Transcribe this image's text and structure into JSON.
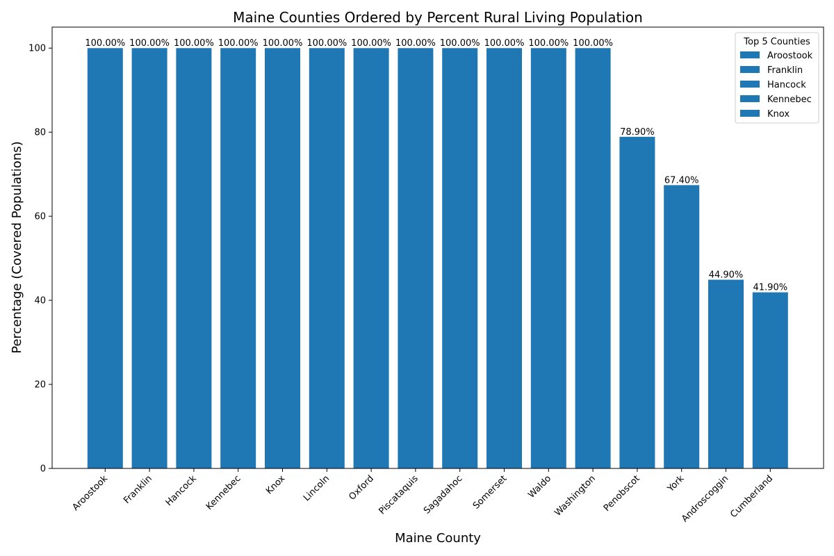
{
  "chart_data": {
    "type": "bar",
    "title": "Maine Counties Ordered by Percent Rural Living Population",
    "xlabel": "Maine County",
    "ylabel": "Percentage (Covered Populations)",
    "categories": [
      "Aroostook",
      "Franklin",
      "Hancock",
      "Kennebec",
      "Knox",
      "Lincoln",
      "Oxford",
      "Piscataquis",
      "Sagadahoc",
      "Somerset",
      "Waldo",
      "Washington",
      "Penobscot",
      "York",
      "Androscoggin",
      "Cumberland"
    ],
    "values": [
      100.0,
      100.0,
      100.0,
      100.0,
      100.0,
      100.0,
      100.0,
      100.0,
      100.0,
      100.0,
      100.0,
      100.0,
      78.9,
      67.4,
      44.9,
      41.9
    ],
    "data_labels": [
      "100.00%",
      "100.00%",
      "100.00%",
      "100.00%",
      "100.00%",
      "100.00%",
      "100.00%",
      "100.00%",
      "100.00%",
      "100.00%",
      "100.00%",
      "100.00%",
      "78.90%",
      "67.40%",
      "44.90%",
      "41.90%"
    ],
    "ylim": [
      0,
      105
    ],
    "yticks": [
      0,
      20,
      40,
      60,
      80,
      100
    ],
    "grid": false,
    "bar_color": "#1f77b4",
    "legend": {
      "title": "Top 5 Counties",
      "placement": "top-right",
      "entries": [
        "Aroostook",
        "Franklin",
        "Hancock",
        "Kennebec",
        "Knox"
      ]
    }
  }
}
